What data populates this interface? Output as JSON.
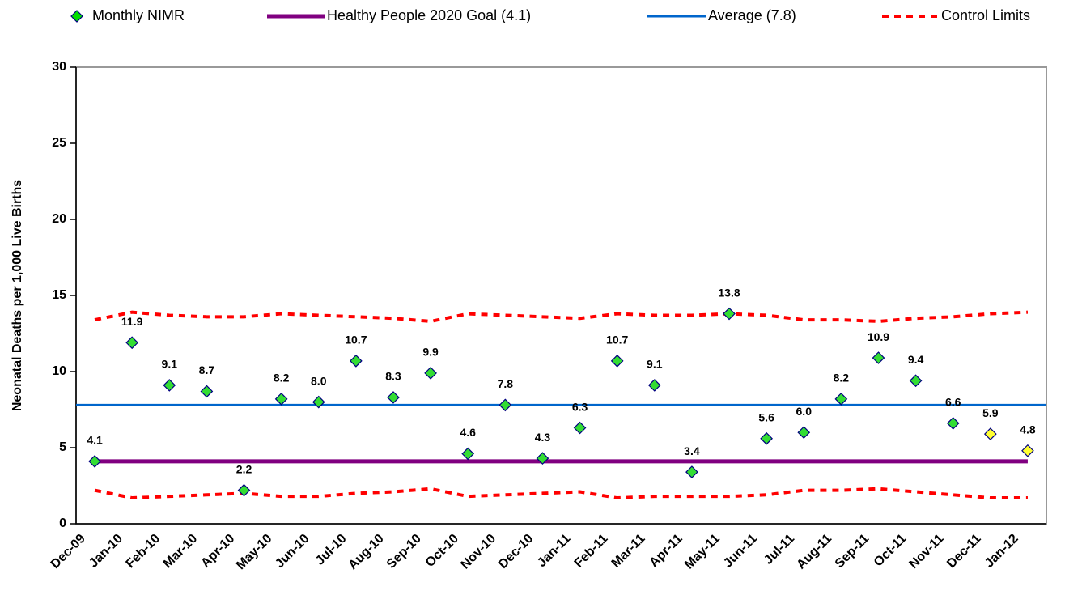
{
  "chart_data": {
    "type": "control",
    "y_label": "Neonatal Deaths per 1,000 Live Births",
    "categories": [
      "Dec-09",
      "Jan-10",
      "Feb-10",
      "Mar-10",
      "Apr-10",
      "May-10",
      "Jun-10",
      "Jul-10",
      "Aug-10",
      "Sep-10",
      "Oct-10",
      "Nov-10",
      "Dec-10",
      "Jan-11",
      "Feb-11",
      "Mar-11",
      "Apr-11",
      "May-11",
      "Jun-11",
      "Jul-11",
      "Aug-11",
      "Sep-11",
      "Oct-11",
      "Nov-11",
      "Dec-11",
      "Jan-12"
    ],
    "series": [
      {
        "name": "Monthly NIMR",
        "color": "#00dd00",
        "colors": [
          "#33dd33",
          "#33dd33",
          "#33dd33",
          "#33dd33",
          "#33dd33",
          "#33dd33",
          "#33dd33",
          "#33dd33",
          "#33dd33",
          "#33dd33",
          "#33dd33",
          "#33dd33",
          "#33dd33",
          "#33dd33",
          "#33dd33",
          "#33dd33",
          "#33dd33",
          "#33dd33",
          "#33dd33",
          "#33dd33",
          "#33dd33",
          "#33dd33",
          "#33dd33",
          "#33dd33",
          "#ffff33",
          "#ffff33"
        ],
        "values": [
          4.1,
          11.9,
          9.1,
          8.7,
          2.2,
          8.2,
          8.0,
          10.7,
          8.3,
          9.9,
          4.6,
          7.8,
          4.3,
          6.3,
          10.7,
          9.1,
          3.4,
          13.8,
          5.6,
          6.0,
          8.2,
          10.9,
          9.4,
          6.6,
          5.9,
          4.8
        ],
        "value_labels": [
          "4.1",
          "11.9",
          "9.1",
          "8.7",
          "2.2",
          "8.2",
          "8.0",
          "10.7",
          "8.3",
          "9.9",
          "4.6",
          "7.8",
          "4.3",
          "6.3",
          "10.7",
          "9.1",
          "3.4",
          "13.8",
          "5.6",
          "6.0",
          "8.2",
          "10.9",
          "9.4",
          "6.6",
          "5.9",
          "4.8"
        ]
      }
    ],
    "reference_lines": [
      {
        "name": "Healthy People 2020 Goal (4.1)",
        "color": "#800080",
        "value": 4.1
      },
      {
        "name": "Average (7.8)",
        "color": "#0066cc",
        "value": 7.8
      }
    ],
    "control_limits": {
      "name": "Control Limits",
      "color": "#ff0000",
      "upper": [
        13.4,
        13.9,
        13.7,
        13.6,
        13.6,
        13.8,
        13.7,
        13.6,
        13.5,
        13.3,
        13.8,
        13.7,
        13.6,
        13.5,
        13.8,
        13.7,
        13.7,
        13.8,
        13.7,
        13.4,
        13.4,
        13.3,
        13.5,
        13.6,
        13.8,
        13.9
      ],
      "lower": [
        2.2,
        1.7,
        1.8,
        1.9,
        2.0,
        1.8,
        1.8,
        2.0,
        2.1,
        2.3,
        1.8,
        1.9,
        2.0,
        2.1,
        1.7,
        1.8,
        1.8,
        1.8,
        1.9,
        2.2,
        2.2,
        2.3,
        2.1,
        1.9,
        1.7,
        1.7
      ]
    },
    "ylim": [
      0,
      30
    ],
    "yticks": [
      0,
      5,
      10,
      15,
      20,
      25,
      30
    ],
    "grid": false
  }
}
